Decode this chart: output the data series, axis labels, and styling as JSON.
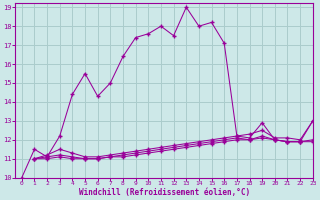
{
  "background_color": "#cde8e8",
  "grid_color": "#aacccc",
  "line_color": "#990099",
  "xlabel": "Windchill (Refroidissement éolien,°C)",
  "xlabel_color": "#990099",
  "tick_color": "#990099",
  "xlim": [
    -0.5,
    23
  ],
  "ylim": [
    10,
    19.2
  ],
  "yticks": [
    10,
    11,
    12,
    13,
    14,
    15,
    16,
    17,
    18,
    19
  ],
  "xticks": [
    0,
    1,
    2,
    3,
    4,
    5,
    6,
    7,
    8,
    9,
    10,
    11,
    12,
    13,
    14,
    15,
    16,
    17,
    18,
    19,
    20,
    21,
    22,
    23
  ],
  "curve_main_x": [
    0,
    1,
    2,
    3,
    4,
    5,
    6,
    7,
    8,
    9,
    10,
    11,
    12,
    13,
    14,
    15,
    16,
    17,
    18,
    19,
    20,
    21,
    22,
    23
  ],
  "curve_main_y": [
    10.0,
    11.5,
    11.1,
    12.2,
    14.4,
    15.5,
    14.3,
    15.0,
    16.4,
    17.4,
    17.6,
    18.0,
    17.5,
    19.0,
    18.0,
    18.2,
    17.1,
    12.2,
    12.1,
    12.9,
    12.0,
    11.9,
    11.9,
    13.0
  ],
  "curve2_x": [
    1,
    2,
    3,
    4,
    5,
    6,
    7,
    8,
    9,
    10,
    11,
    12,
    13,
    14,
    15,
    16,
    17,
    18,
    19,
    20,
    21,
    22,
    23
  ],
  "curve2_y": [
    11.0,
    11.2,
    11.5,
    11.3,
    11.1,
    11.1,
    11.2,
    11.3,
    11.4,
    11.5,
    11.6,
    11.7,
    11.8,
    11.9,
    12.0,
    12.1,
    12.2,
    12.3,
    12.5,
    12.1,
    12.1,
    12.0,
    13.0
  ],
  "curve3_x": [
    1,
    2,
    3,
    4,
    5,
    6,
    7,
    8,
    9,
    10,
    11,
    12,
    13,
    14,
    15,
    16,
    17,
    18,
    19,
    20,
    21,
    22,
    23
  ],
  "curve3_y": [
    11.0,
    11.1,
    11.2,
    11.1,
    11.0,
    11.0,
    11.1,
    11.2,
    11.3,
    11.4,
    11.5,
    11.6,
    11.7,
    11.8,
    11.9,
    12.0,
    12.1,
    12.0,
    12.2,
    12.0,
    11.9,
    11.9,
    12.0
  ],
  "curve4_x": [
    1,
    2,
    3,
    4,
    5,
    6,
    7,
    8,
    9,
    10,
    11,
    12,
    13,
    14,
    15,
    16,
    17,
    18,
    19,
    20,
    21,
    22,
    23
  ],
  "curve4_y": [
    11.0,
    11.0,
    11.1,
    11.0,
    11.0,
    11.0,
    11.1,
    11.1,
    11.2,
    11.3,
    11.4,
    11.5,
    11.6,
    11.7,
    11.8,
    11.9,
    12.0,
    12.0,
    12.1,
    12.0,
    11.9,
    11.9,
    11.9
  ]
}
